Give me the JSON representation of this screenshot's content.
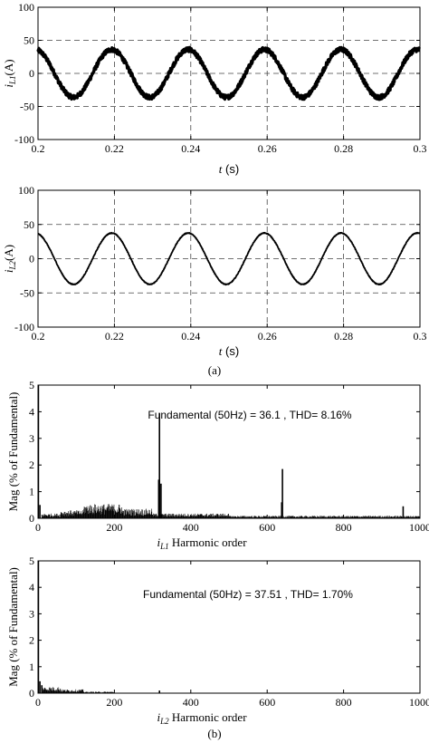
{
  "captions": {
    "a": "(a)",
    "b": "(b)"
  },
  "chart_data": [
    {
      "type": "line",
      "id": "iL1-time",
      "ylabel_main": "i",
      "ylabel_sub": "L1",
      "ylabel_unit": "(A)",
      "xlabel_main": "t",
      "xlabel_unit": " (s)",
      "xlim": [
        0.2,
        0.3
      ],
      "ylim": [
        -100,
        100
      ],
      "xticks": [
        "0.2",
        "0.22",
        "0.24",
        "0.26",
        "0.28",
        "0.3"
      ],
      "yticks": [
        "-100",
        "-50",
        "0",
        "50",
        "100"
      ],
      "xgrid": [
        0.22,
        0.24,
        0.26,
        0.28
      ],
      "ygrid": [
        -50,
        0,
        50
      ],
      "grid": true,
      "series": [
        {
          "frequency_hz": 50,
          "amplitude": 36.1,
          "noise_amplitude": 3.5,
          "stroke_width": 3.2
        }
      ]
    },
    {
      "type": "line",
      "id": "iL2-time",
      "ylabel_main": "i",
      "ylabel_sub": "L2",
      "ylabel_unit": "(A)",
      "xlabel_main": "t",
      "xlabel_unit": " (s)",
      "xlim": [
        0.2,
        0.3
      ],
      "ylim": [
        -100,
        100
      ],
      "xticks": [
        "0.2",
        "0.22",
        "0.24",
        "0.26",
        "0.28",
        "0.3"
      ],
      "yticks": [
        "-100",
        "-50",
        "0",
        "50",
        "100"
      ],
      "xgrid": [
        0.22,
        0.24,
        0.26,
        0.28
      ],
      "ygrid": [
        -50,
        0,
        50
      ],
      "grid": true,
      "series": [
        {
          "frequency_hz": 50,
          "amplitude": 37.51,
          "noise_amplitude": 0.6,
          "stroke_width": 1.8
        }
      ]
    },
    {
      "type": "bar",
      "id": "iL1-spectrum",
      "ylabel": "Mag (% of Fundamental)",
      "xlabel_main": "i",
      "xlabel_sub": "L1",
      "xlabel_rest": " Harmonic order",
      "xlim": [
        0,
        1000
      ],
      "ylim": [
        0,
        5
      ],
      "xticks": [
        "0",
        "200",
        "400",
        "600",
        "800",
        "1000"
      ],
      "yticks": [
        "0",
        "1",
        "2",
        "3",
        "4",
        "5"
      ],
      "annotation": "Fundamental (50Hz) = 36.1 , THD= 8.16%",
      "spikes": [
        {
          "order": 1,
          "value": 5.5
        },
        {
          "order": 5,
          "value": 0.5
        },
        {
          "order": 318,
          "value": 3.95
        },
        {
          "order": 316,
          "value": 1.45
        },
        {
          "order": 322,
          "value": 1.3
        },
        {
          "order": 640,
          "value": 1.85
        },
        {
          "order": 638,
          "value": 0.6
        },
        {
          "order": 956,
          "value": 0.45
        }
      ],
      "noise_floor": [
        {
          "from": 10,
          "to": 60,
          "level": 0.15
        },
        {
          "from": 60,
          "to": 120,
          "level": 0.25
        },
        {
          "from": 120,
          "to": 220,
          "level": 0.45
        },
        {
          "from": 220,
          "to": 300,
          "level": 0.3
        },
        {
          "from": 300,
          "to": 500,
          "level": 0.15
        },
        {
          "from": 500,
          "to": 1000,
          "level": 0.08
        }
      ]
    },
    {
      "type": "bar",
      "id": "iL2-spectrum",
      "ylabel": "Mag (% of Fundamental)",
      "xlabel_main": "i",
      "xlabel_sub": "L2",
      "xlabel_rest": " Harmonic order",
      "xlim": [
        0,
        1000
      ],
      "ylim": [
        0,
        5
      ],
      "xticks": [
        "0",
        "200",
        "400",
        "600",
        "800",
        "1000"
      ],
      "yticks": [
        "0",
        "1",
        "2",
        "3",
        "4",
        "5"
      ],
      "annotation": "Fundamental (50Hz) = 37.51 , THD= 1.70%",
      "spikes": [
        {
          "order": 1,
          "value": 5.5
        },
        {
          "order": 5,
          "value": 0.45
        },
        {
          "order": 10,
          "value": 0.3
        },
        {
          "order": 318,
          "value": 0.1
        }
      ],
      "noise_floor": [
        {
          "from": 12,
          "to": 60,
          "level": 0.2
        },
        {
          "from": 60,
          "to": 120,
          "level": 0.12
        },
        {
          "from": 120,
          "to": 200,
          "level": 0.05
        },
        {
          "from": 200,
          "to": 1000,
          "level": 0.015
        }
      ]
    }
  ]
}
